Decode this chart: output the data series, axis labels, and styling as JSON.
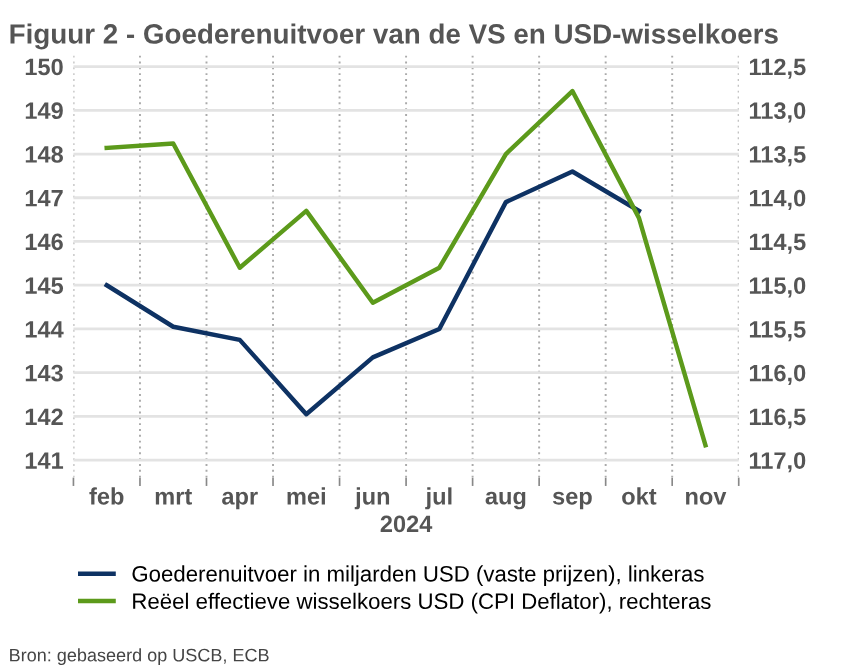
{
  "chart_data": {
    "type": "line",
    "title": "Figuur 2 - Goederenuitvoer van de VS en USD-wisselkoers",
    "xlabel": "2024",
    "categories": [
      "feb",
      "mrt",
      "apr",
      "mei",
      "jun",
      "jul",
      "aug",
      "sep",
      "okt",
      "nov"
    ],
    "series": [
      {
        "name": "Goederenuitvoer in miljarden USD (vaste prijzen), linkeras",
        "color": "#0e3263",
        "values": [
          145.0,
          144.05,
          143.75,
          142.05,
          143.35,
          144.0,
          146.9,
          147.6,
          146.7,
          null
        ]
      },
      {
        "name": "Reëel effectieve wisselkoers USD (CPI Deflator), rechteras",
        "color": "#5c9a1b",
        "axis": "y2",
        "values": [
          113.43,
          113.38,
          114.8,
          114.15,
          115.2,
          114.8,
          113.5,
          112.78,
          114.23,
          116.83
        ]
      }
    ],
    "ylim": [
      140.6,
      150.3
    ],
    "yticks": [
      141,
      142,
      143,
      144,
      145,
      146,
      147,
      148,
      149,
      150
    ],
    "y2lim": [
      117.2,
      112.35
    ],
    "y2ticks": [
      {
        "value": 112.5,
        "label": "112,5"
      },
      {
        "value": 113.0,
        "label": "113,0"
      },
      {
        "value": 113.5,
        "label": "113,5"
      },
      {
        "value": 114.0,
        "label": "114,0"
      },
      {
        "value": 114.5,
        "label": "114,5"
      },
      {
        "value": 115.0,
        "label": "115,0"
      },
      {
        "value": 115.5,
        "label": "115,5"
      },
      {
        "value": 116.0,
        "label": "116,0"
      },
      {
        "value": 116.5,
        "label": "116,5"
      },
      {
        "value": 117.0,
        "label": "117,0"
      }
    ],
    "grid": "y",
    "legend": "bottom",
    "marker": "none",
    "line_style": "solid",
    "annotations": [
      "Bron: gebaseerd op USCB, ECB"
    ]
  }
}
